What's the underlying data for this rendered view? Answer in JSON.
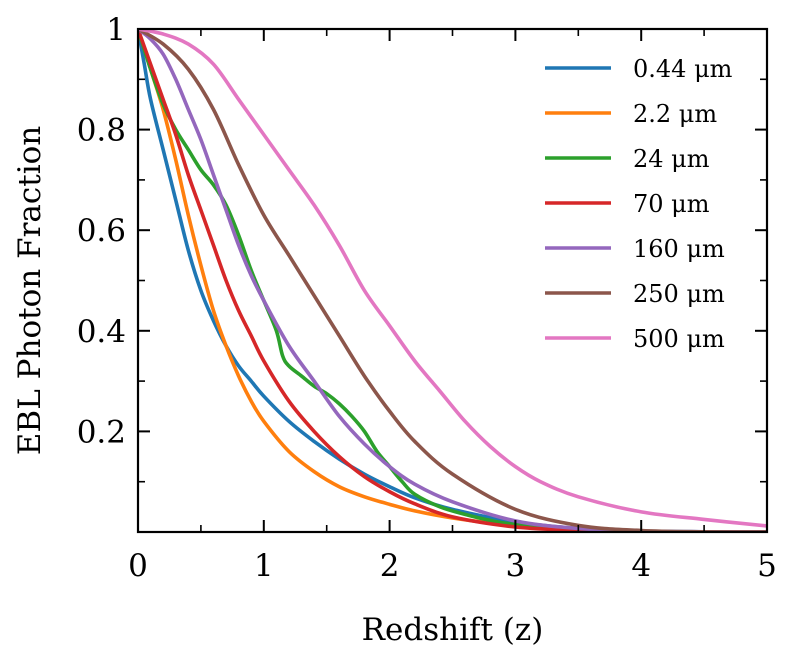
{
  "chart_data": {
    "type": "line",
    "title": "",
    "xlabel": "Redshift (z)",
    "ylabel": "EBL Photon Fraction",
    "xlim": [
      0,
      5
    ],
    "ylim": [
      0.0,
      1.0
    ],
    "grid": false,
    "legend_position": "top-right",
    "x_ticks": [
      0,
      1,
      2,
      3,
      4,
      5
    ],
    "x_tick_labels": [
      "0",
      "1",
      "2",
      "3",
      "4",
      "5"
    ],
    "x_minor_ticks": [
      0.5,
      1.5,
      2.5,
      3.5,
      4.5
    ],
    "y_ticks": [
      0.2,
      0.4,
      0.6,
      0.8,
      1.0
    ],
    "y_tick_labels": [
      "0.2",
      "0.4",
      "0.6",
      "0.8",
      "1"
    ],
    "y_minor_ticks": [
      0.1,
      0.3,
      0.5,
      0.7,
      0.9
    ],
    "series": [
      {
        "name": "0.44 μm",
        "color": "#1f77b4",
        "x": [
          0,
          0.05,
          0.1,
          0.2,
          0.3,
          0.4,
          0.5,
          0.6,
          0.7,
          0.8,
          0.9,
          1.0,
          1.2,
          1.4,
          1.6,
          1.8,
          2.0,
          2.2,
          2.5,
          3.0,
          3.5,
          4.0,
          4.5,
          5.0
        ],
        "y": [
          1.0,
          0.93,
          0.86,
          0.76,
          0.66,
          0.56,
          0.48,
          0.42,
          0.37,
          0.33,
          0.3,
          0.27,
          0.22,
          0.18,
          0.145,
          0.115,
          0.09,
          0.068,
          0.045,
          0.02,
          0.007,
          0.002,
          0.0005,
          0.0
        ]
      },
      {
        "name": "2.2 μm",
        "color": "#ff7f0e",
        "x": [
          0,
          0.1,
          0.2,
          0.3,
          0.4,
          0.5,
          0.6,
          0.7,
          0.8,
          0.9,
          1.0,
          1.2,
          1.4,
          1.6,
          1.8,
          2.0,
          2.2,
          2.5,
          3.0,
          3.5,
          4.0,
          4.5,
          5.0
        ],
        "y": [
          1.0,
          0.92,
          0.84,
          0.74,
          0.63,
          0.53,
          0.44,
          0.37,
          0.31,
          0.26,
          0.22,
          0.16,
          0.12,
          0.09,
          0.07,
          0.055,
          0.042,
          0.028,
          0.012,
          0.004,
          0.001,
          0.0,
          0.0
        ]
      },
      {
        "name": "24 μm",
        "color": "#2ca02c",
        "x": [
          0,
          0.1,
          0.2,
          0.3,
          0.4,
          0.5,
          0.6,
          0.7,
          0.8,
          0.9,
          1.0,
          1.1,
          1.15,
          1.2,
          1.3,
          1.4,
          1.5,
          1.6,
          1.7,
          1.8,
          1.9,
          2.0,
          2.1,
          2.2,
          2.4,
          2.6,
          2.8,
          3.0,
          3.5,
          4.0,
          4.5,
          5.0
        ],
        "y": [
          1.0,
          0.92,
          0.85,
          0.8,
          0.76,
          0.72,
          0.69,
          0.65,
          0.59,
          0.52,
          0.46,
          0.4,
          0.35,
          0.33,
          0.31,
          0.29,
          0.275,
          0.255,
          0.23,
          0.2,
          0.16,
          0.13,
          0.1,
          0.075,
          0.05,
          0.035,
          0.023,
          0.015,
          0.005,
          0.001,
          0.0,
          0.0
        ]
      },
      {
        "name": "70 μm",
        "color": "#d62728",
        "x": [
          0,
          0.1,
          0.2,
          0.3,
          0.4,
          0.5,
          0.6,
          0.7,
          0.8,
          0.9,
          1.0,
          1.2,
          1.4,
          1.6,
          1.8,
          2.0,
          2.2,
          2.5,
          3.0,
          3.5,
          4.0,
          4.5,
          5.0
        ],
        "y": [
          1.0,
          0.93,
          0.86,
          0.79,
          0.71,
          0.64,
          0.57,
          0.5,
          0.44,
          0.39,
          0.34,
          0.26,
          0.2,
          0.15,
          0.11,
          0.08,
          0.056,
          0.03,
          0.01,
          0.003,
          0.0007,
          0.0,
          0.0
        ]
      },
      {
        "name": "160 μm",
        "color": "#9467bd",
        "x": [
          0,
          0.1,
          0.2,
          0.3,
          0.4,
          0.5,
          0.6,
          0.7,
          0.8,
          0.9,
          1.0,
          1.2,
          1.4,
          1.6,
          1.8,
          2.0,
          2.2,
          2.5,
          3.0,
          3.5,
          4.0,
          4.5,
          5.0
        ],
        "y": [
          1.0,
          0.98,
          0.95,
          0.9,
          0.84,
          0.78,
          0.71,
          0.64,
          0.57,
          0.51,
          0.46,
          0.37,
          0.3,
          0.23,
          0.175,
          0.13,
          0.095,
          0.06,
          0.022,
          0.007,
          0.002,
          0.0004,
          0.0
        ]
      },
      {
        "name": "250 μm",
        "color": "#8c564b",
        "x": [
          0,
          0.2,
          0.4,
          0.6,
          0.8,
          1.0,
          1.2,
          1.4,
          1.6,
          1.8,
          2.0,
          2.2,
          2.5,
          3.0,
          3.5,
          4.0,
          4.5,
          5.0
        ],
        "y": [
          1.0,
          0.97,
          0.92,
          0.84,
          0.73,
          0.63,
          0.55,
          0.47,
          0.39,
          0.31,
          0.24,
          0.18,
          0.115,
          0.045,
          0.013,
          0.003,
          0.0005,
          0.0
        ]
      },
      {
        "name": "500 μm",
        "color": "#e377c2",
        "x": [
          0,
          0.2,
          0.4,
          0.6,
          0.8,
          1.0,
          1.2,
          1.4,
          1.6,
          1.8,
          2.0,
          2.2,
          2.4,
          2.6,
          2.8,
          3.0,
          3.2,
          3.5,
          4.0,
          4.5,
          5.0
        ],
        "y": [
          1.0,
          0.99,
          0.97,
          0.93,
          0.86,
          0.79,
          0.72,
          0.65,
          0.57,
          0.48,
          0.41,
          0.34,
          0.28,
          0.22,
          0.17,
          0.13,
          0.1,
          0.07,
          0.04,
          0.025,
          0.012
        ]
      }
    ]
  }
}
